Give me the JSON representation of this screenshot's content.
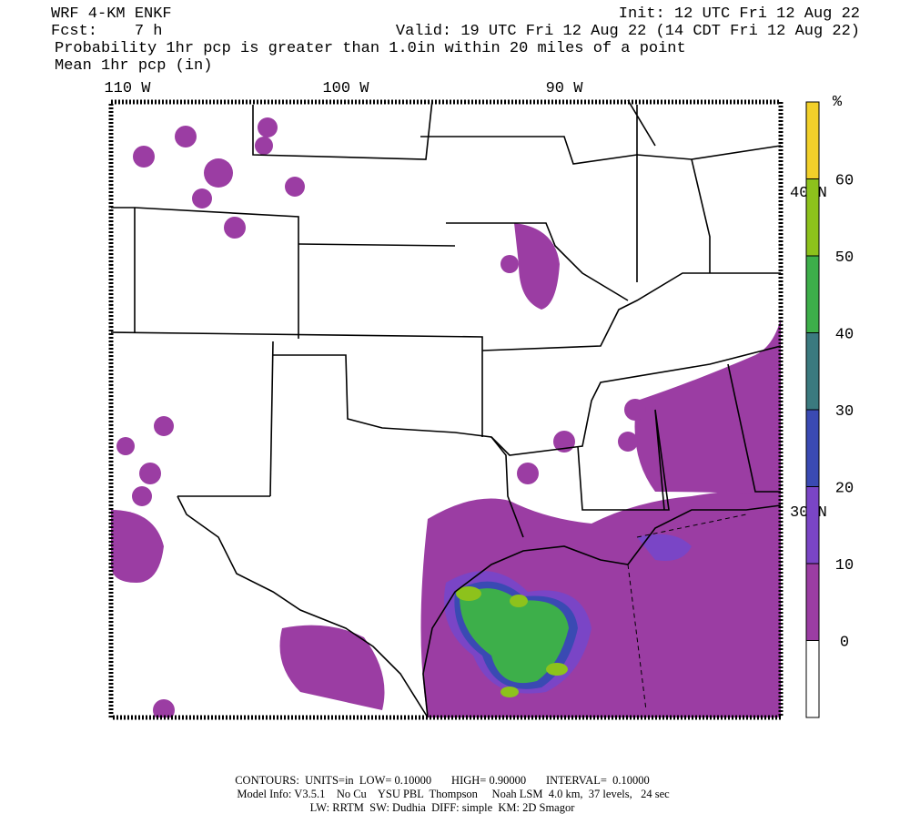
{
  "header": {
    "model": "WRF 4-KM ENKF",
    "forecast": "Fcst:    7 h",
    "init": "Init: 12 UTC Fri 12 Aug 22",
    "valid": "Valid: 19 UTC Fri 12 Aug 22 (14 CDT Fri 12 Aug 22)",
    "field": "Probability 1hr pcp is greater than 1.0in within 20 miles of a point",
    "contour_field": "Mean 1hr pcp (in)"
  },
  "map": {
    "lon_labels": [
      "110 W",
      "100 W",
      "90 W"
    ],
    "lat_labels": [
      "40 N",
      "30 N"
    ]
  },
  "colorbar": {
    "unit": "%",
    "ticks": [
      0,
      10,
      20,
      30,
      40,
      50,
      60
    ],
    "colors": [
      "#ffffff",
      "#9b3da3",
      "#7a45c6",
      "#3a4ab3",
      "#3b7a7f",
      "#3daf4a",
      "#8dc21c",
      "#f2d02a"
    ]
  },
  "footer": [
    "CONTOURS:  UNITS=in  LOW= 0.10000       HIGH= 0.90000       INTERVAL=  0.10000",
    "Model Info: V3.5.1    No Cu    YSU PBL  Thompson     Noah LSM  4.0 km,  37 levels,   24 sec",
    "LW: RRTM  SW: Dudhia  DIFF: simple  KM: 2D Smagor"
  ]
}
